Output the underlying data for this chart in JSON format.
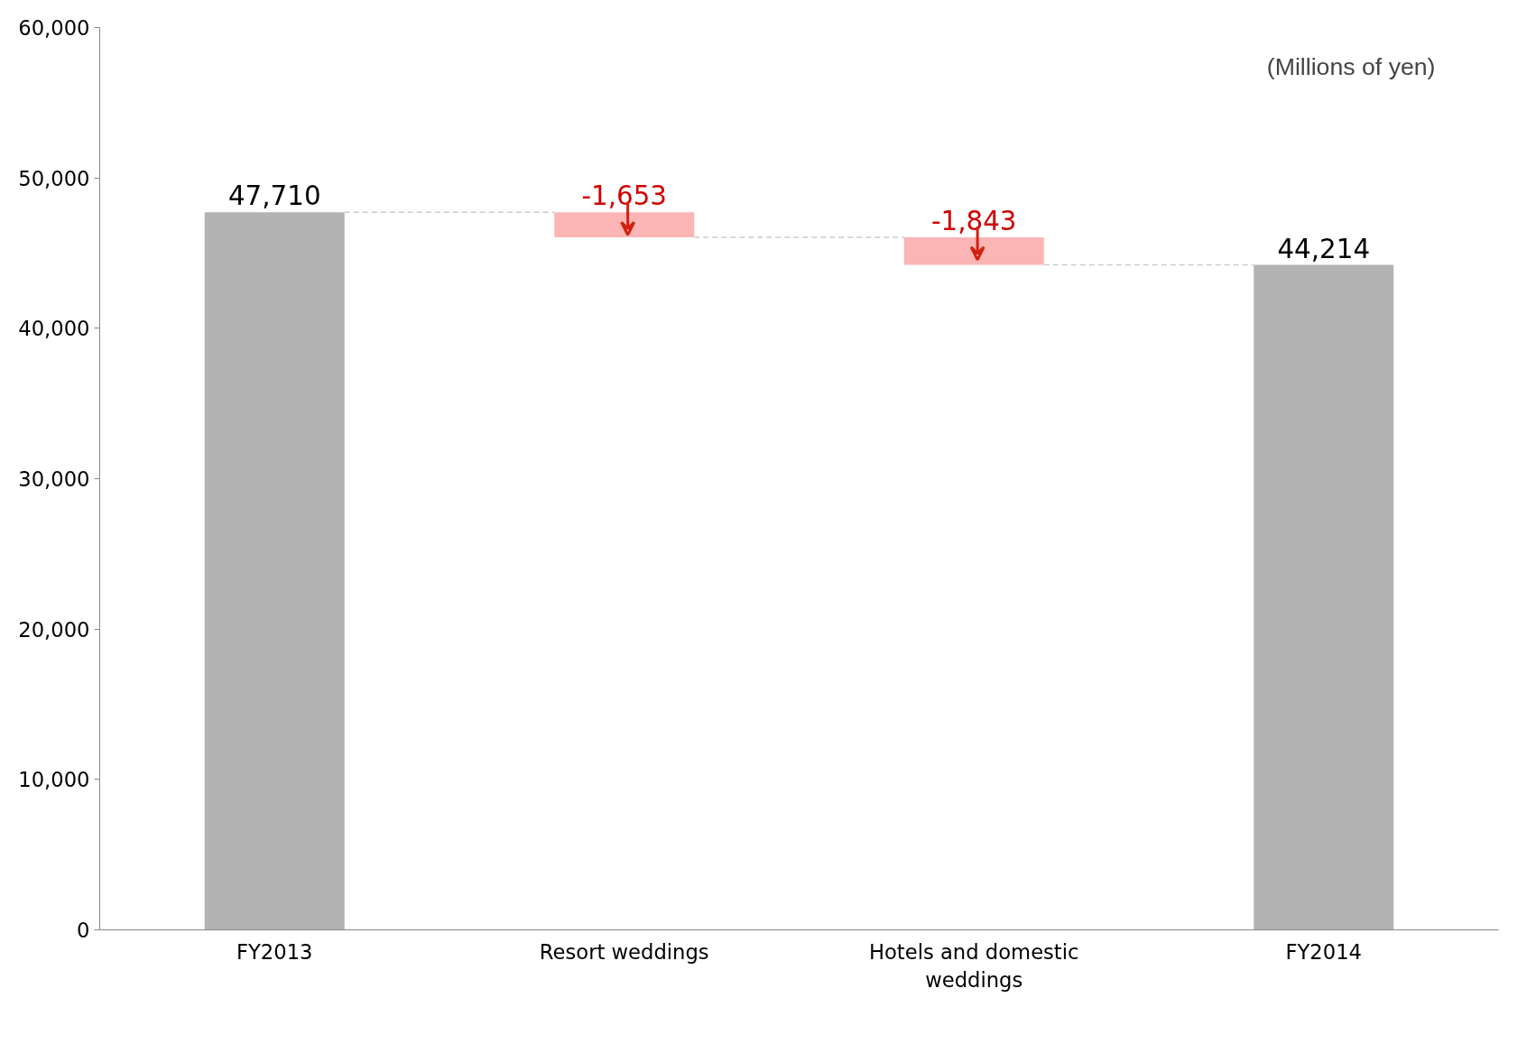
{
  "chart_data": {
    "type": "bar",
    "categories": [
      "FY2013",
      "Resort weddings",
      "Hotels and domestic weddings",
      "FY2014"
    ],
    "values": [
      47710,
      -1653,
      -1843,
      44214
    ],
    "base": [
      0,
      47710,
      46057,
      0
    ],
    "colors": [
      "#b3b3b3",
      "#fbb5b5",
      "#fbb5b5",
      "#b3b3b3"
    ],
    "value_labels": [
      "47,710",
      "-1,653",
      "-1,843",
      "44,214"
    ],
    "ylim": [
      0,
      60000
    ],
    "yticks": [
      0,
      {
        "value": 10000,
        "label": "10,000"
      },
      {
        "value": 20000,
        "label": "20,000"
      },
      {
        "value": 30000,
        "label": "30,000"
      },
      {
        "value": 40000,
        "label": "40,000"
      },
      {
        "value": 50000,
        "label": "50,000"
      },
      {
        "value": 60000,
        "label": "60,000"
      }
    ],
    "annotations": [
      "(Millions of yen)"
    ],
    "grid": false
  }
}
